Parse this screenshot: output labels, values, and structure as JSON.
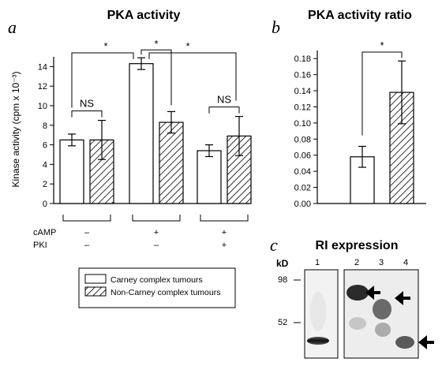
{
  "chart_data": [
    {
      "type": "bar",
      "panel_letter": "a",
      "title": "PKA activity",
      "ylabel": "Kinase activity (cpm x 10⁻³)",
      "ylim": [
        0,
        15
      ],
      "yticks": [
        0,
        2,
        4,
        6,
        8,
        10,
        12,
        14
      ],
      "groups": [
        {
          "carney": 6.5,
          "carney_err": 0.6,
          "noncarney": 6.5,
          "noncarney_err": 2.0,
          "annotation": "NS"
        },
        {
          "carney": 14.3,
          "carney_err": 0.6,
          "noncarney": 8.3,
          "noncarney_err": 1.1,
          "annotation": "*"
        },
        {
          "carney": 5.4,
          "carney_err": 0.6,
          "noncarney": 6.9,
          "noncarney_err": 2.0,
          "annotation": "NS"
        }
      ],
      "series": [
        {
          "name": "Carney complex tumours"
        },
        {
          "name": "Non-Carney complex tumours"
        }
      ],
      "conditions": {
        "rows": [
          {
            "label": "cAMP",
            "values": [
              "–",
              "+",
              "+"
            ]
          },
          {
            "label": "PKI",
            "values": [
              "–",
              "–",
              "+"
            ]
          }
        ]
      },
      "significance": [
        "*",
        "*",
        "*"
      ]
    },
    {
      "type": "bar",
      "panel_letter": "b",
      "title": "PKA activity ratio",
      "ylim": [
        0,
        0.19
      ],
      "yticks": [
        "0.00",
        "0.02",
        "0.04",
        "0.06",
        "0.08",
        "0.10",
        "0.12",
        "0.14",
        "0.16",
        "0.18"
      ],
      "values": [
        0.058,
        0.138
      ],
      "errors": [
        0.013,
        0.039
      ],
      "significance": "*"
    }
  ],
  "panel_c": {
    "panel_letter": "c",
    "title": "RI expression",
    "unit": "kD",
    "markers": [
      "98",
      "52"
    ],
    "lanes": [
      "1",
      "2",
      "3",
      "4"
    ]
  }
}
